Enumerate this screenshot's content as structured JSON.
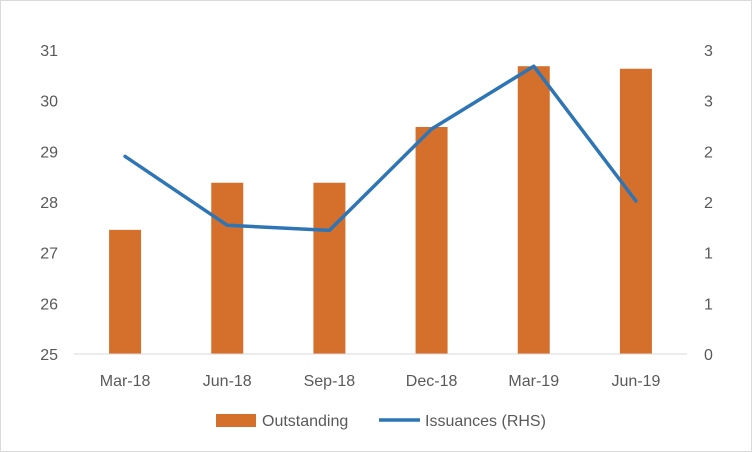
{
  "chart_data": {
    "type": "bar",
    "categories": [
      "Mar-18",
      "Jun-18",
      "Sep-18",
      "Dec-18",
      "Mar-19",
      "Jun-19"
    ],
    "series": [
      {
        "name": "Outstanding",
        "type": "bar",
        "axis": "left",
        "values": [
          27.45,
          28.38,
          28.38,
          29.48,
          30.68,
          30.63
        ],
        "color": "#D4702B"
      },
      {
        "name": "Issuances (RHS)",
        "type": "line",
        "axis": "right",
        "values": [
          1.95,
          1.27,
          1.22,
          2.22,
          2.84,
          1.51
        ],
        "color": "#2E75B6"
      }
    ],
    "left_axis": {
      "ylim": [
        25,
        31
      ],
      "ticks": [
        25,
        26,
        27,
        28,
        29,
        30,
        31
      ],
      "tick_labels": [
        "25",
        "26",
        "27",
        "28",
        "29",
        "30",
        "31"
      ]
    },
    "right_axis": {
      "ylim": [
        0,
        3
      ],
      "ticks": [
        0,
        0.5,
        1,
        1.5,
        2,
        2.5,
        3
      ],
      "tick_labels": [
        "0",
        "1",
        "1",
        "2",
        "2",
        "3",
        "3"
      ]
    },
    "grid": false,
    "legend": "bottom",
    "legend_items": [
      "Outstanding",
      "Issuances (RHS)"
    ]
  }
}
